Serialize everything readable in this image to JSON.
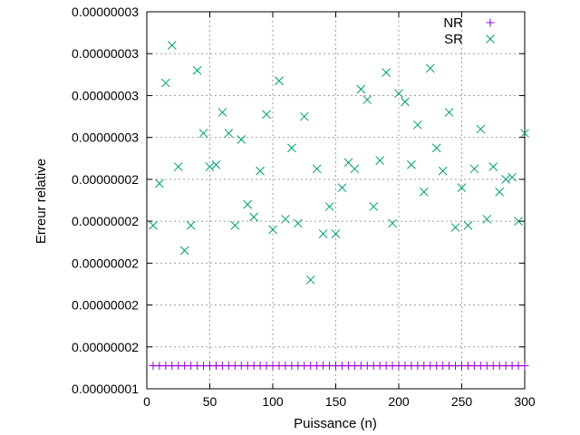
{
  "chart_data": {
    "type": "scatter",
    "title": "",
    "xlabel": "Puissance (n)",
    "ylabel": "Erreur relative",
    "xlim": [
      0,
      300
    ],
    "ylim": [
      0,
      9
    ],
    "grid": true,
    "legend_position": "top-right",
    "x_ticks": [
      {
        "value": 0,
        "label": "0"
      },
      {
        "value": 50,
        "label": "50"
      },
      {
        "value": 100,
        "label": "100"
      },
      {
        "value": 150,
        "label": "150"
      },
      {
        "value": 200,
        "label": "200"
      },
      {
        "value": 250,
        "label": "250"
      },
      {
        "value": 300,
        "label": "300"
      }
    ],
    "y_ticks": [
      {
        "value": 0,
        "label": "0.00000001"
      },
      {
        "value": 1,
        "label": "0.00000002"
      },
      {
        "value": 2,
        "label": "0.00000002"
      },
      {
        "value": 3,
        "label": "0.00000002"
      },
      {
        "value": 4,
        "label": "0.00000002"
      },
      {
        "value": 5,
        "label": "0.00000002"
      },
      {
        "value": 6,
        "label": "0.00000003"
      },
      {
        "value": 7,
        "label": "0.00000003"
      },
      {
        "value": 8,
        "label": "0.00000003"
      },
      {
        "value": 9,
        "label": "0.00000003"
      }
    ],
    "series": [
      {
        "name": "NR",
        "marker": "plus",
        "color": "#9400d3",
        "x": [
          5,
          10,
          15,
          20,
          25,
          30,
          35,
          40,
          45,
          50,
          55,
          60,
          65,
          70,
          75,
          80,
          85,
          90,
          95,
          100,
          105,
          110,
          115,
          120,
          125,
          130,
          135,
          140,
          145,
          150,
          155,
          160,
          165,
          170,
          175,
          180,
          185,
          190,
          195,
          200,
          205,
          210,
          215,
          220,
          225,
          230,
          235,
          240,
          245,
          250,
          255,
          260,
          265,
          270,
          275,
          280,
          285,
          290,
          295,
          300
        ],
        "y": [
          0.55,
          0.55,
          0.55,
          0.55,
          0.55,
          0.55,
          0.55,
          0.55,
          0.55,
          0.55,
          0.55,
          0.55,
          0.55,
          0.55,
          0.55,
          0.55,
          0.55,
          0.55,
          0.55,
          0.55,
          0.55,
          0.55,
          0.55,
          0.55,
          0.55,
          0.55,
          0.55,
          0.55,
          0.55,
          0.55,
          0.55,
          0.55,
          0.55,
          0.55,
          0.55,
          0.55,
          0.55,
          0.55,
          0.55,
          0.55,
          0.55,
          0.55,
          0.55,
          0.55,
          0.55,
          0.55,
          0.55,
          0.55,
          0.55,
          0.55,
          0.55,
          0.55,
          0.55,
          0.55,
          0.55,
          0.55,
          0.55,
          0.55,
          0.55,
          0.55
        ]
      },
      {
        "name": "SR",
        "marker": "cross",
        "color": "#009e73",
        "x": [
          5,
          10,
          15,
          20,
          25,
          30,
          35,
          40,
          45,
          50,
          55,
          60,
          65,
          70,
          75,
          80,
          85,
          90,
          95,
          100,
          105,
          110,
          115,
          120,
          125,
          130,
          135,
          140,
          145,
          150,
          155,
          160,
          165,
          170,
          175,
          180,
          185,
          190,
          195,
          200,
          205,
          210,
          215,
          220,
          225,
          230,
          235,
          240,
          245,
          250,
          255,
          260,
          265,
          270,
          275,
          280,
          285,
          290,
          295,
          300
        ],
        "y": [
          3.9,
          4.9,
          7.3,
          8.2,
          5.3,
          3.3,
          3.9,
          7.6,
          6.1,
          5.3,
          5.35,
          6.6,
          6.1,
          3.9,
          5.95,
          4.4,
          4.1,
          5.2,
          6.55,
          3.8,
          7.35,
          4.05,
          5.75,
          3.95,
          6.5,
          2.6,
          5.25,
          3.7,
          4.35,
          3.7,
          4.8,
          5.4,
          5.25,
          7.15,
          6.9,
          4.35,
          5.45,
          7.55,
          3.95,
          7.05,
          6.85,
          5.35,
          6.3,
          4.7,
          7.65,
          5.75,
          5.2,
          6.6,
          3.85,
          4.8,
          3.9,
          5.25,
          6.2,
          4.05,
          5.3,
          4.7,
          5.0,
          5.05,
          4.0,
          6.1
        ]
      }
    ]
  }
}
